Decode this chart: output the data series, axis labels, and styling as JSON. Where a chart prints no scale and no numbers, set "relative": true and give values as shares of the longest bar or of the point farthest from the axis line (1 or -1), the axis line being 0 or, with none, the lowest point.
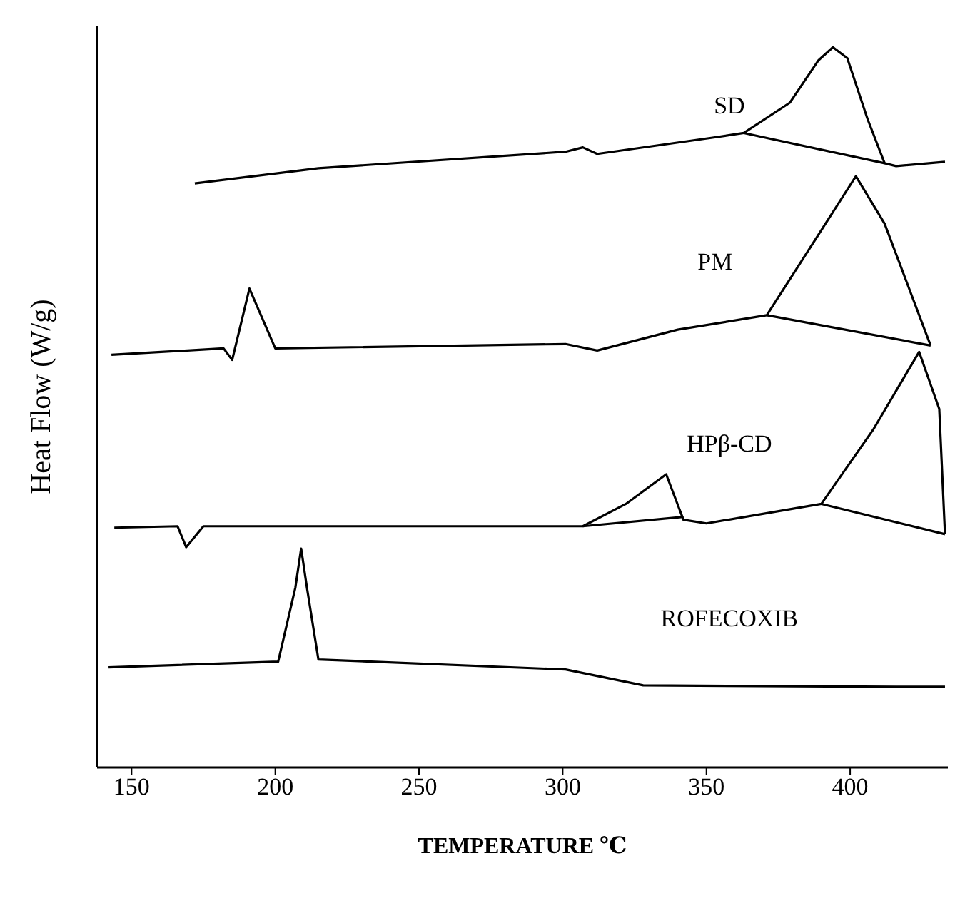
{
  "chart_data": {
    "type": "line",
    "relative": true,
    "xlabel": "TEMPERATURE ℃",
    "ylabel": "Heat Flow (W/g)",
    "xlim": [
      138,
      434
    ],
    "xticks": [
      150,
      200,
      250,
      300,
      350,
      400
    ],
    "marker": "none",
    "line_style": "solid",
    "series": [
      {
        "name": "SD",
        "color": "#000000",
        "x": [
          172,
          215,
          301,
          307,
          312,
          353,
          363,
          379,
          389,
          394,
          399,
          406,
          412,
          416,
          433
        ],
        "values": [
          0.811,
          0.832,
          0.855,
          0.861,
          0.852,
          0.875,
          0.881,
          0.923,
          0.982,
          1.0,
          0.985,
          0.901,
          0.839,
          0.835,
          0.841
        ]
      },
      {
        "color": "#000000",
        "x": [
          363,
          412
        ],
        "values": [
          0.881,
          0.839
        ]
      },
      {
        "name": "PM",
        "color": "#000000",
        "x": [
          143,
          182,
          185,
          191,
          200,
          301,
          312,
          340,
          371,
          389,
          402,
          412,
          428
        ],
        "values": [
          0.573,
          0.582,
          0.566,
          0.665,
          0.582,
          0.588,
          0.579,
          0.608,
          0.628,
          0.74,
          0.821,
          0.755,
          0.586
        ]
      },
      {
        "color": "#000000",
        "x": [
          371,
          428
        ],
        "values": [
          0.628,
          0.586
        ]
      },
      {
        "name": "HPβ-CD",
        "color": "#000000",
        "x": [
          144,
          166,
          169,
          175,
          307,
          322,
          336,
          342,
          350,
          390,
          408,
          424,
          431,
          433
        ],
        "values": [
          0.333,
          0.335,
          0.306,
          0.335,
          0.335,
          0.366,
          0.407,
          0.344,
          0.339,
          0.366,
          0.469,
          0.577,
          0.498,
          0.324
        ]
      },
      {
        "color": "#000000",
        "x": [
          307,
          342
        ],
        "values": [
          0.335,
          0.348
        ]
      },
      {
        "color": "#000000",
        "x": [
          390,
          433
        ],
        "values": [
          0.366,
          0.324
        ]
      },
      {
        "name": "ROFECOXIB",
        "color": "#000000",
        "x": [
          142,
          201,
          207,
          209,
          211,
          215,
          301,
          328,
          416,
          433
        ],
        "values": [
          0.139,
          0.147,
          0.25,
          0.304,
          0.25,
          0.15,
          0.136,
          0.114,
          0.112,
          0.112
        ]
      }
    ]
  }
}
